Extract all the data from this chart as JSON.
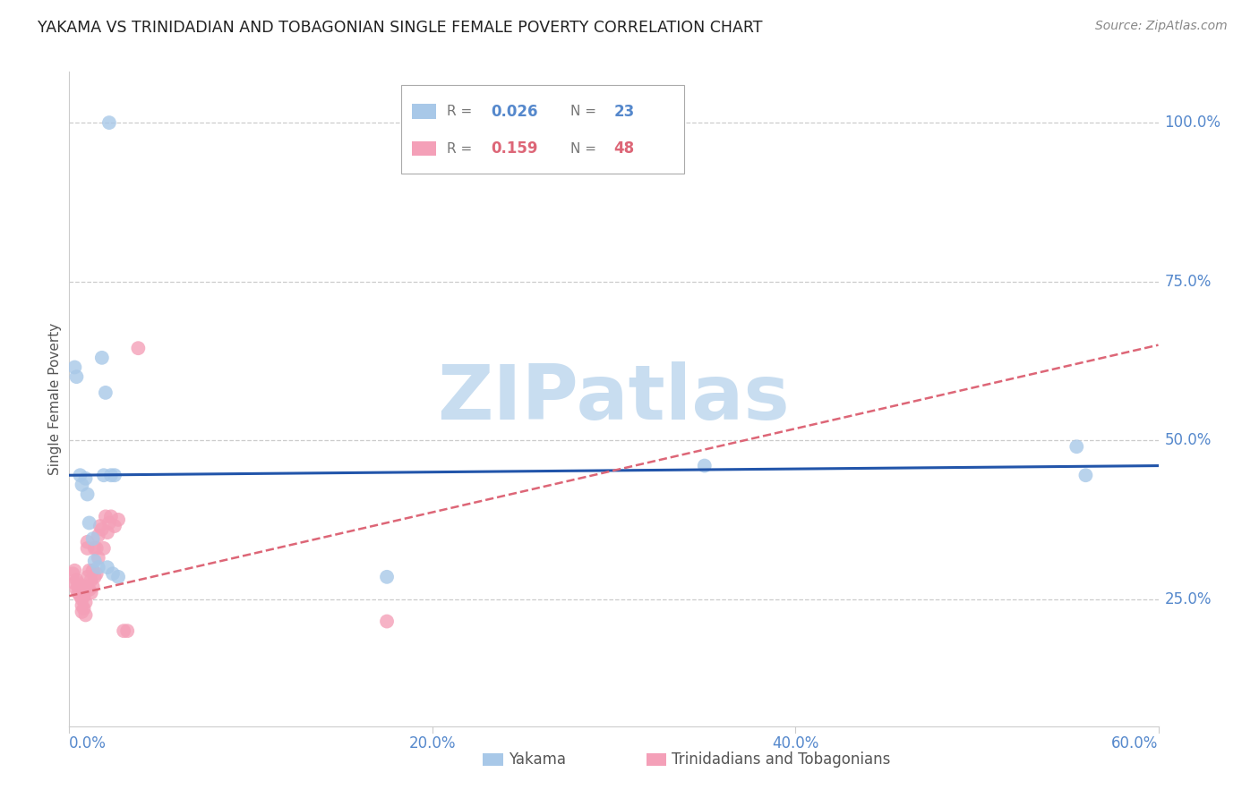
{
  "title": "YAKAMA VS TRINIDADIAN AND TOBAGONIAN SINGLE FEMALE POVERTY CORRELATION CHART",
  "source": "Source: ZipAtlas.com",
  "ylabel": "Single Female Poverty",
  "ytick_labels": [
    "100.0%",
    "75.0%",
    "50.0%",
    "25.0%"
  ],
  "ytick_values": [
    1.0,
    0.75,
    0.5,
    0.25
  ],
  "xlim": [
    0.0,
    0.6
  ],
  "ylim": [
    0.05,
    1.08
  ],
  "label1": "Yakama",
  "label2": "Trinidadians and Tobagonians",
  "color1": "#a8c8e8",
  "color2": "#f4a0b8",
  "line1_color": "#2255aa",
  "line2_color": "#dd6677",
  "axis_color": "#5588cc",
  "title_color": "#222222",
  "watermark_text": "ZIPatlas",
  "watermark_color": "#c8ddf0",
  "source_color": "#888888",
  "yakama_x": [
    0.022,
    0.003,
    0.004,
    0.006,
    0.007,
    0.009,
    0.01,
    0.011,
    0.013,
    0.014,
    0.016,
    0.018,
    0.019,
    0.021,
    0.023,
    0.024,
    0.025,
    0.027,
    0.175,
    0.35,
    0.555,
    0.56,
    0.02
  ],
  "yakama_y": [
    1.0,
    0.615,
    0.6,
    0.445,
    0.43,
    0.44,
    0.415,
    0.37,
    0.345,
    0.31,
    0.3,
    0.63,
    0.445,
    0.3,
    0.445,
    0.29,
    0.445,
    0.285,
    0.285,
    0.46,
    0.49,
    0.445,
    0.575
  ],
  "trini_x": [
    0.002,
    0.003,
    0.003,
    0.004,
    0.004,
    0.005,
    0.005,
    0.005,
    0.006,
    0.006,
    0.006,
    0.007,
    0.007,
    0.007,
    0.007,
    0.008,
    0.008,
    0.009,
    0.009,
    0.01,
    0.01,
    0.01,
    0.01,
    0.011,
    0.011,
    0.012,
    0.012,
    0.013,
    0.013,
    0.014,
    0.014,
    0.015,
    0.015,
    0.016,
    0.016,
    0.017,
    0.018,
    0.019,
    0.02,
    0.021,
    0.022,
    0.023,
    0.025,
    0.027,
    0.03,
    0.032,
    0.038,
    0.175
  ],
  "trini_y": [
    0.29,
    0.295,
    0.275,
    0.28,
    0.265,
    0.275,
    0.27,
    0.26,
    0.27,
    0.265,
    0.255,
    0.26,
    0.25,
    0.24,
    0.23,
    0.255,
    0.235,
    0.245,
    0.225,
    0.34,
    0.33,
    0.285,
    0.27,
    0.295,
    0.265,
    0.28,
    0.26,
    0.295,
    0.27,
    0.33,
    0.285,
    0.33,
    0.29,
    0.35,
    0.315,
    0.365,
    0.36,
    0.33,
    0.38,
    0.355,
    0.37,
    0.38,
    0.365,
    0.375,
    0.2,
    0.2,
    0.645,
    0.215
  ],
  "grid_color": "#cccccc",
  "grid_linestyle": "--",
  "spine_color": "#cccccc"
}
